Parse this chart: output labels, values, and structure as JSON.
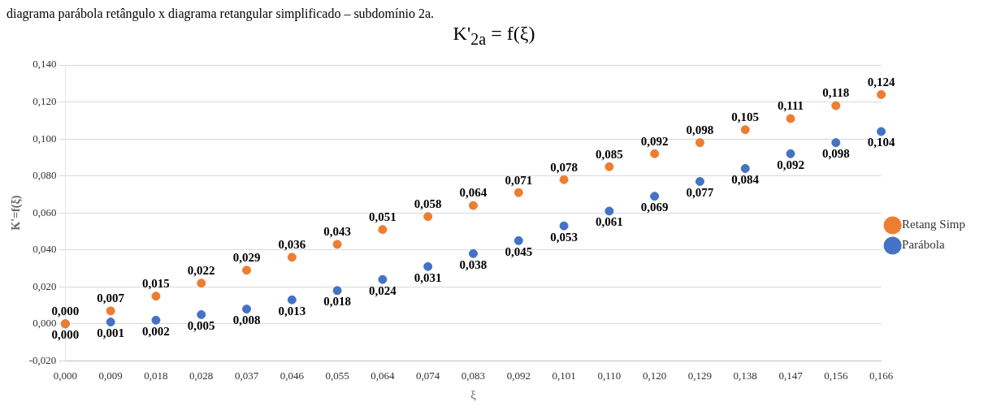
{
  "chart_data": {
    "type": "scatter",
    "title": "K'$_{2a}$ = f(ξ)",
    "xlabel": "ξ",
    "ylabel": "K'=f(ξ)",
    "annotations": [
      "diagrama parábola retângulo x diagrama retangular simplificado – subdomínio 2a."
    ],
    "categories": [
      "0,000",
      "0,009",
      "0,018",
      "0,028",
      "0,037",
      "0,046",
      "0,055",
      "0,064",
      "0,074",
      "0,083",
      "0,092",
      "0,101",
      "0,110",
      "0,120",
      "0,129",
      "0,138",
      "0,147",
      "0,156",
      "0,166"
    ],
    "series": [
      {
        "name": "Retang Simp",
        "color": "#ed7d31",
        "values": [
          0.0,
          0.007,
          0.015,
          0.022,
          0.029,
          0.036,
          0.043,
          0.051,
          0.058,
          0.064,
          0.071,
          0.078,
          0.085,
          0.092,
          0.098,
          0.105,
          0.111,
          0.118,
          0.124
        ],
        "value_labels": [
          "0,000",
          "0,007",
          "0,015",
          "0,022",
          "0,029",
          "0,036",
          "0,043",
          "0,051",
          "0,058",
          "0,064",
          "0,071",
          "0,078",
          "0,085",
          "0,092",
          "0,098",
          "0,105",
          "0,111",
          "0,118",
          "0,124"
        ]
      },
      {
        "name": "Parábola",
        "color": "#4472c4",
        "values": [
          0.0,
          0.001,
          0.002,
          0.005,
          0.008,
          0.013,
          0.018,
          0.024,
          0.031,
          0.038,
          0.045,
          0.053,
          0.061,
          0.069,
          0.077,
          0.084,
          0.092,
          0.098,
          0.104
        ],
        "value_labels": [
          "0,000",
          "0,001",
          "0,002",
          "0,005",
          "0,008",
          "0,013",
          "0,018",
          "0,024",
          "0,031",
          "0,038",
          "0,045",
          "0,053",
          "0,061",
          "0,069",
          "0,077",
          "0,084",
          "0,092",
          "0,098",
          "0,104"
        ]
      }
    ],
    "ylim": [
      -0.02,
      0.14
    ],
    "yticks": [
      {
        "value": -0.02,
        "label": "-0,020"
      },
      {
        "value": 0,
        "label": "0,000"
      },
      {
        "value": 0.02,
        "label": "0,020"
      },
      {
        "value": 0.04,
        "label": "0,040"
      },
      {
        "value": 0.06,
        "label": "0,060"
      },
      {
        "value": 0.08,
        "label": "0,080"
      },
      {
        "value": 0.1,
        "label": "0,100"
      },
      {
        "value": 0.12,
        "label": "0,120"
      },
      {
        "value": 0.14,
        "label": "0,140"
      }
    ],
    "grid": "y",
    "legend": "right",
    "marker": "circle"
  }
}
